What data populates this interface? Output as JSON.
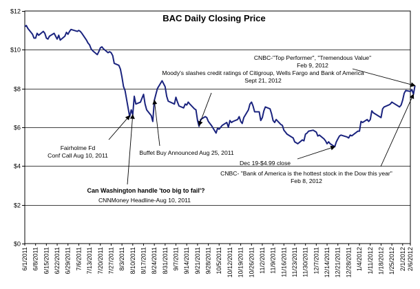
{
  "chart_data": {
    "type": "line",
    "title": "BAC Daily Closing Price",
    "xlabel": "",
    "ylabel": "",
    "ylim": [
      0,
      12
    ],
    "y_ticks": [
      "$0",
      "$2",
      "$4",
      "$6",
      "$8",
      "$10",
      "$12"
    ],
    "x_tick_labels": [
      "6/1/2011",
      "6/8/2011",
      "6/15/2011",
      "6/22/2011",
      "6/29/2011",
      "7/6/2011",
      "7/13/2011",
      "7/20/2011",
      "7/27/2011",
      "8/3/2011",
      "8/10/2011",
      "8/17/2011",
      "8/24/2011",
      "8/31/2011",
      "9/7/2011",
      "9/14/2011",
      "9/21/2011",
      "9/28/2011",
      "10/5/2011",
      "10/12/2011",
      "10/19/2011",
      "10/26/2011",
      "11/2/2011",
      "11/9/2011",
      "11/16/2011",
      "11/23/2011",
      "11/30/2011",
      "12/7/2011",
      "12/14/2011",
      "12/21/2011",
      "12/28/2011",
      "1/4/2012",
      "1/11/2012",
      "1/18/2012",
      "1/25/2012",
      "2/1/2012",
      "2/6/2012"
    ],
    "grid": true,
    "line_color": "#1a237e",
    "series": [
      {
        "points": [
          [
            "2011-06-01",
            11.2
          ],
          [
            "2011-06-02",
            11.25
          ],
          [
            "2011-06-03",
            11.1
          ],
          [
            "2011-06-06",
            10.8
          ],
          [
            "2011-06-07",
            10.6
          ],
          [
            "2011-06-08",
            10.6
          ],
          [
            "2011-06-09",
            10.85
          ],
          [
            "2011-06-10",
            10.75
          ],
          [
            "2011-06-13",
            10.95
          ],
          [
            "2011-06-14",
            10.85
          ],
          [
            "2011-06-15",
            10.6
          ],
          [
            "2011-06-16",
            10.55
          ],
          [
            "2011-06-17",
            10.7
          ],
          [
            "2011-06-20",
            10.85
          ],
          [
            "2011-06-21",
            10.7
          ],
          [
            "2011-06-22",
            10.55
          ],
          [
            "2011-06-23",
            10.75
          ],
          [
            "2011-06-24",
            10.5
          ],
          [
            "2011-06-27",
            10.7
          ],
          [
            "2011-06-28",
            10.9
          ],
          [
            "2011-06-29",
            10.8
          ],
          [
            "2011-06-30",
            10.95
          ],
          [
            "2011-07-01",
            11.05
          ],
          [
            "2011-07-05",
            10.95
          ],
          [
            "2011-07-06",
            11.0
          ],
          [
            "2011-07-07",
            10.95
          ],
          [
            "2011-07-08",
            10.85
          ],
          [
            "2011-07-11",
            10.5
          ],
          [
            "2011-07-12",
            10.35
          ],
          [
            "2011-07-13",
            10.25
          ],
          [
            "2011-07-14",
            10.05
          ],
          [
            "2011-07-15",
            9.95
          ],
          [
            "2011-07-18",
            9.75
          ],
          [
            "2011-07-19",
            9.9
          ],
          [
            "2011-07-20",
            10.1
          ],
          [
            "2011-07-21",
            10.15
          ],
          [
            "2011-07-22",
            10.05
          ],
          [
            "2011-07-25",
            9.85
          ],
          [
            "2011-07-26",
            9.9
          ],
          [
            "2011-07-27",
            9.85
          ],
          [
            "2011-07-28",
            9.7
          ],
          [
            "2011-07-29",
            9.3
          ],
          [
            "2011-08-01",
            9.2
          ],
          [
            "2011-08-02",
            9.0
          ],
          [
            "2011-08-03",
            8.6
          ],
          [
            "2011-08-04",
            8.1
          ],
          [
            "2011-08-05",
            7.9
          ],
          [
            "2011-08-08",
            6.55
          ],
          [
            "2011-08-09",
            6.9
          ],
          [
            "2011-08-10",
            6.65
          ],
          [
            "2011-08-11",
            7.6
          ],
          [
            "2011-08-12",
            7.2
          ],
          [
            "2011-08-15",
            7.3
          ],
          [
            "2011-08-16",
            7.5
          ],
          [
            "2011-08-17",
            7.7
          ],
          [
            "2011-08-18",
            7.2
          ],
          [
            "2011-08-19",
            6.9
          ],
          [
            "2011-08-22",
            6.6
          ],
          [
            "2011-08-23",
            6.3
          ],
          [
            "2011-08-24",
            7.4
          ],
          [
            "2011-08-25",
            7.7
          ],
          [
            "2011-08-26",
            8.0
          ],
          [
            "2011-08-29",
            8.4
          ],
          [
            "2011-08-30",
            8.25
          ],
          [
            "2011-08-31",
            8.1
          ],
          [
            "2011-09-01",
            7.6
          ],
          [
            "2011-09-02",
            7.35
          ],
          [
            "2011-09-06",
            7.2
          ],
          [
            "2011-09-07",
            7.55
          ],
          [
            "2011-09-08",
            7.3
          ],
          [
            "2011-09-09",
            7.1
          ],
          [
            "2011-09-12",
            7.0
          ],
          [
            "2011-09-13",
            7.2
          ],
          [
            "2011-09-14",
            7.15
          ],
          [
            "2011-09-15",
            7.3
          ],
          [
            "2011-09-16",
            7.2
          ],
          [
            "2011-09-19",
            6.95
          ],
          [
            "2011-09-20",
            6.9
          ],
          [
            "2011-09-21",
            6.35
          ],
          [
            "2011-09-22",
            6.05
          ],
          [
            "2011-09-23",
            6.4
          ],
          [
            "2011-09-26",
            6.55
          ],
          [
            "2011-09-27",
            6.5
          ],
          [
            "2011-09-28",
            6.3
          ],
          [
            "2011-09-29",
            6.2
          ],
          [
            "2011-09-30",
            6.1
          ],
          [
            "2011-10-03",
            5.7
          ],
          [
            "2011-10-04",
            5.95
          ],
          [
            "2011-10-05",
            5.9
          ],
          [
            "2011-10-06",
            6.0
          ],
          [
            "2011-10-07",
            6.1
          ],
          [
            "2011-10-10",
            6.25
          ],
          [
            "2011-10-11",
            6.0
          ],
          [
            "2011-10-12",
            6.35
          ],
          [
            "2011-10-13",
            6.25
          ],
          [
            "2011-10-14",
            6.3
          ],
          [
            "2011-10-17",
            6.4
          ],
          [
            "2011-10-18",
            6.55
          ],
          [
            "2011-10-19",
            6.3
          ],
          [
            "2011-10-20",
            6.2
          ],
          [
            "2011-10-21",
            6.5
          ],
          [
            "2011-10-24",
            6.9
          ],
          [
            "2011-10-25",
            7.2
          ],
          [
            "2011-10-26",
            7.3
          ],
          [
            "2011-10-27",
            7.1
          ],
          [
            "2011-10-28",
            6.8
          ],
          [
            "2011-10-31",
            6.8
          ],
          [
            "2011-11-01",
            6.35
          ],
          [
            "2011-11-02",
            6.5
          ],
          [
            "2011-11-03",
            6.85
          ],
          [
            "2011-11-04",
            7.05
          ],
          [
            "2011-11-07",
            6.95
          ],
          [
            "2011-11-08",
            6.7
          ],
          [
            "2011-11-09",
            6.35
          ],
          [
            "2011-11-10",
            6.25
          ],
          [
            "2011-11-11",
            6.4
          ],
          [
            "2011-11-14",
            6.15
          ],
          [
            "2011-11-15",
            6.1
          ],
          [
            "2011-11-16",
            5.85
          ],
          [
            "2011-11-17",
            5.75
          ],
          [
            "2011-11-18",
            5.65
          ],
          [
            "2011-11-21",
            5.5
          ],
          [
            "2011-11-22",
            5.45
          ],
          [
            "2011-11-23",
            5.25
          ],
          [
            "2011-11-25",
            5.15
          ],
          [
            "2011-11-28",
            5.35
          ],
          [
            "2011-11-29",
            5.3
          ],
          [
            "2011-11-30",
            5.65
          ],
          [
            "2011-12-01",
            5.7
          ],
          [
            "2011-12-02",
            5.8
          ],
          [
            "2011-12-05",
            5.85
          ],
          [
            "2011-12-06",
            5.8
          ],
          [
            "2011-12-07",
            5.75
          ],
          [
            "2011-12-08",
            5.55
          ],
          [
            "2011-12-09",
            5.6
          ],
          [
            "2011-12-12",
            5.4
          ],
          [
            "2011-12-13",
            5.3
          ],
          [
            "2011-12-14",
            5.15
          ],
          [
            "2011-12-15",
            5.25
          ],
          [
            "2011-12-16",
            5.15
          ],
          [
            "2011-12-19",
            5.0
          ],
          [
            "2011-12-20",
            5.25
          ],
          [
            "2011-12-21",
            5.4
          ],
          [
            "2011-12-22",
            5.55
          ],
          [
            "2011-12-23",
            5.6
          ],
          [
            "2011-12-27",
            5.5
          ],
          [
            "2011-12-28",
            5.45
          ],
          [
            "2011-12-29",
            5.6
          ],
          [
            "2011-12-30",
            5.56
          ],
          [
            "2012-01-03",
            5.8
          ],
          [
            "2012-01-04",
            5.8
          ],
          [
            "2012-01-05",
            6.3
          ],
          [
            "2012-01-06",
            6.25
          ],
          [
            "2012-01-09",
            6.4
          ],
          [
            "2012-01-10",
            6.3
          ],
          [
            "2012-01-11",
            6.4
          ],
          [
            "2012-01-12",
            6.85
          ],
          [
            "2012-01-13",
            6.75
          ],
          [
            "2012-01-17",
            6.55
          ],
          [
            "2012-01-18",
            6.5
          ],
          [
            "2012-01-19",
            6.95
          ],
          [
            "2012-01-20",
            7.05
          ],
          [
            "2012-01-23",
            7.15
          ],
          [
            "2012-01-24",
            7.2
          ],
          [
            "2012-01-25",
            7.3
          ],
          [
            "2012-01-26",
            7.25
          ],
          [
            "2012-01-27",
            7.2
          ],
          [
            "2012-01-30",
            7.05
          ],
          [
            "2012-01-31",
            7.15
          ],
          [
            "2012-02-01",
            7.4
          ],
          [
            "2012-02-02",
            7.75
          ],
          [
            "2012-02-03",
            7.9
          ],
          [
            "2012-02-06",
            7.85
          ],
          [
            "2012-02-07",
            7.95
          ],
          [
            "2012-02-08",
            7.7
          ],
          [
            "2012-02-09",
            8.15
          ]
        ]
      }
    ],
    "annotations": [
      {
        "lines": [
          "CNBC-\"Top Performer\", \"Tremendous Value\"",
          "Feb 9, 2012"
        ],
        "target": [
          "2012-02-09",
          8.15
        ],
        "bold": false
      },
      {
        "lines": [
          "Moody's slashes credit ratings of Citigroup, Wells Fargo and Bank of America",
          "Sept 21, 2012"
        ],
        "target": [
          "2011-09-22",
          6.1
        ],
        "bold": false
      },
      {
        "lines": [
          "Fairholme Fd",
          "Conf Call Aug 10, 2011"
        ],
        "target": [
          "2011-08-08",
          6.6
        ],
        "bold": false
      },
      {
        "lines": [
          "Buffet Buy Announced Aug 25, 2011"
        ],
        "target": [
          "2011-08-24",
          7.4
        ],
        "bold": false
      },
      {
        "lines": [
          "Dec 19-$4.99 close"
        ],
        "target": [
          "2011-12-19",
          5.0
        ],
        "bold": false
      },
      {
        "lines": [
          "CNBC- \"Bank of America is the hottest stock in the Dow this year\"",
          "Feb 8, 2012"
        ],
        "target": [
          "2012-02-08",
          7.7
        ],
        "bold": false
      },
      {
        "lines": [
          "Can Washington handle 'too big to fail'?"
        ],
        "target": [
          "2011-08-10",
          6.65
        ],
        "bold": true
      },
      {
        "lines": [
          "CNNMoney Headline-Aug 10, 2011"
        ],
        "target": null,
        "bold": false
      }
    ]
  }
}
